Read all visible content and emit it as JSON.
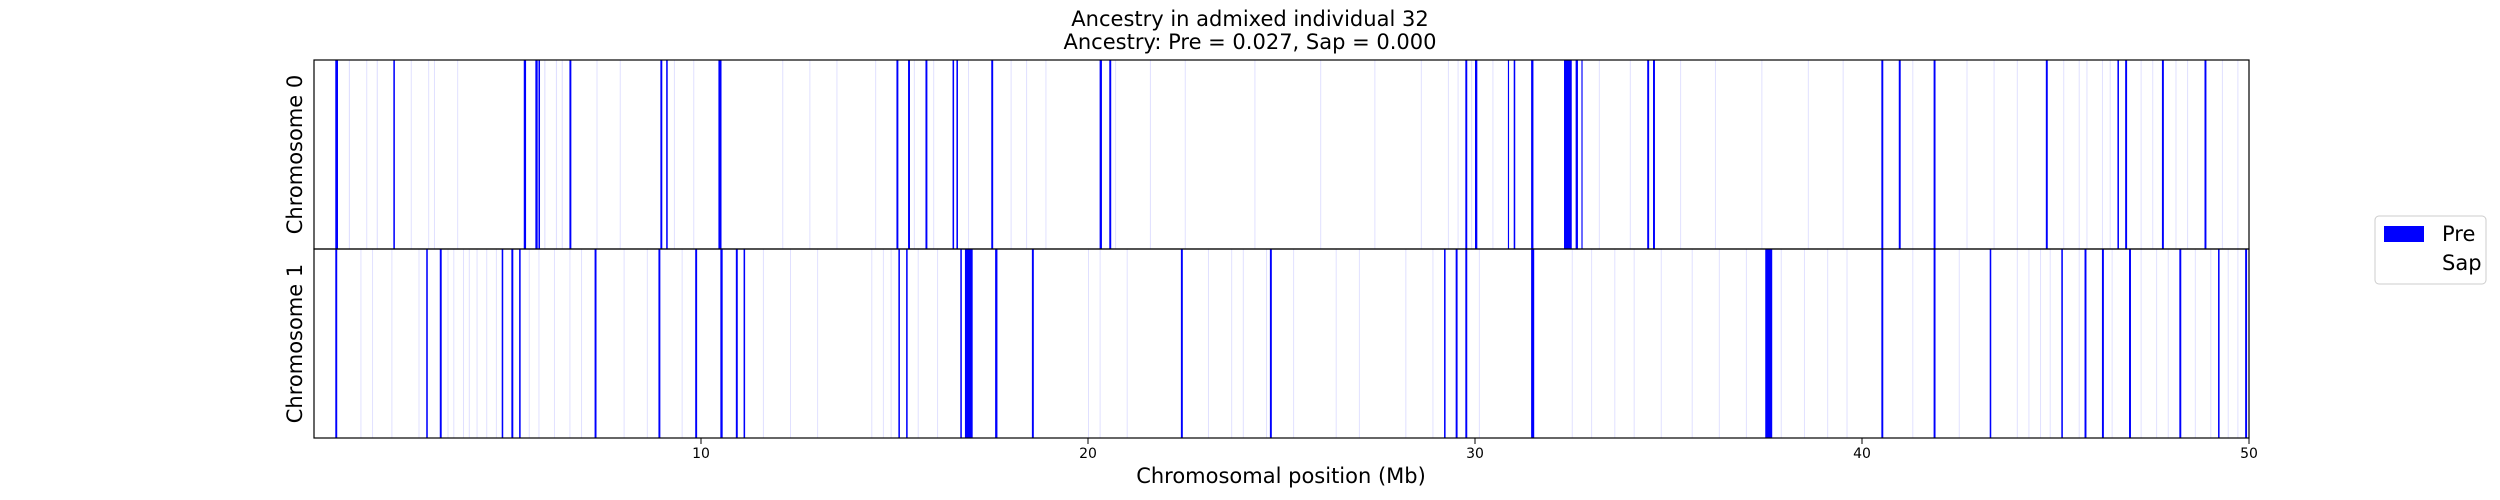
{
  "chart_data": {
    "type": "ancestry-tracks",
    "title": "Ancestry in admixed individual 32",
    "subtitle": "Ancestry: Pre = 0.027, Sap = 0.000",
    "xlabel": "Chromosomal position (Mb)",
    "xlim": [
      0,
      50
    ],
    "xticks": [
      10,
      20,
      30,
      40,
      50
    ],
    "tracks": [
      {
        "label": "Chromosome 0",
        "segments": [
          [
            0.55,
            0.62,
            1
          ],
          [
            0.9,
            0.93,
            0.12
          ],
          [
            1.35,
            1.37,
            0.12
          ],
          [
            1.62,
            1.65,
            0.12
          ],
          [
            2.05,
            2.09,
            1
          ],
          [
            2.5,
            2.52,
            0.12
          ],
          [
            2.95,
            2.97,
            0.12
          ],
          [
            3.1,
            3.12,
            0.12
          ],
          [
            3.7,
            3.72,
            0.12
          ],
          [
            5.42,
            5.48,
            1
          ],
          [
            5.72,
            5.78,
            1
          ],
          [
            5.8,
            5.84,
            1
          ],
          [
            5.95,
            5.98,
            0.12
          ],
          [
            6.25,
            6.28,
            0.12
          ],
          [
            6.4,
            6.43,
            0.12
          ],
          [
            6.6,
            6.65,
            1
          ],
          [
            7.3,
            7.32,
            0.12
          ],
          [
            7.9,
            7.92,
            0.12
          ],
          [
            8.95,
            9.0,
            1
          ],
          [
            9.1,
            9.14,
            1
          ],
          [
            9.3,
            9.32,
            0.12
          ],
          [
            9.8,
            9.82,
            0.12
          ],
          [
            10.45,
            10.53,
            1
          ],
          [
            12.1,
            12.12,
            0.12
          ],
          [
            12.8,
            12.82,
            0.12
          ],
          [
            13.5,
            13.52,
            0.12
          ],
          [
            14.5,
            14.52,
            0.12
          ],
          [
            15.05,
            15.1,
            1
          ],
          [
            15.35,
            15.4,
            1
          ],
          [
            15.5,
            15.52,
            0.12
          ],
          [
            15.8,
            15.85,
            1
          ],
          [
            16.0,
            16.02,
            0.12
          ],
          [
            16.5,
            16.54,
            1
          ],
          [
            16.6,
            16.64,
            1
          ],
          [
            16.9,
            16.92,
            0.12
          ],
          [
            17.5,
            17.55,
            1
          ],
          [
            18.0,
            18.02,
            0.12
          ],
          [
            18.4,
            18.42,
            0.12
          ],
          [
            18.9,
            18.92,
            0.12
          ],
          [
            20.3,
            20.36,
            1
          ],
          [
            20.55,
            20.6,
            1
          ],
          [
            20.7,
            20.72,
            0.12
          ],
          [
            21.6,
            21.62,
            0.12
          ],
          [
            22.5,
            22.52,
            0.12
          ],
          [
            24.3,
            24.32,
            0.12
          ],
          [
            26.0,
            26.02,
            0.12
          ],
          [
            27.4,
            27.42,
            0.12
          ],
          [
            28.6,
            28.62,
            0.12
          ],
          [
            29.3,
            29.32,
            0.12
          ],
          [
            29.55,
            29.57,
            0.12
          ],
          [
            29.75,
            29.8,
            1
          ],
          [
            29.9,
            29.92,
            0.12
          ],
          [
            30.0,
            30.06,
            1
          ],
          [
            30.45,
            30.47,
            0.12
          ],
          [
            30.85,
            30.88,
            1
          ],
          [
            31.0,
            31.04,
            1
          ],
          [
            31.45,
            31.51,
            1
          ],
          [
            32.3,
            32.5,
            1
          ],
          [
            32.6,
            32.66,
            1
          ],
          [
            32.75,
            32.78,
            1
          ],
          [
            33.2,
            33.22,
            0.12
          ],
          [
            34.0,
            34.02,
            0.12
          ],
          [
            34.45,
            34.5,
            1
          ],
          [
            34.6,
            34.65,
            1
          ],
          [
            35.3,
            35.32,
            0.12
          ],
          [
            36.2,
            36.22,
            0.12
          ],
          [
            37.4,
            37.42,
            0.12
          ],
          [
            38.6,
            38.62,
            0.12
          ],
          [
            39.5,
            39.52,
            0.12
          ],
          [
            40.5,
            40.55,
            1
          ],
          [
            40.95,
            41.0,
            1
          ],
          [
            41.3,
            41.32,
            0.12
          ],
          [
            41.85,
            41.9,
            1
          ],
          [
            42.7,
            42.72,
            0.12
          ],
          [
            43.4,
            43.42,
            0.12
          ],
          [
            44.0,
            44.02,
            0.12
          ],
          [
            44.75,
            44.8,
            1
          ],
          [
            45.2,
            45.22,
            0.12
          ],
          [
            45.6,
            45.62,
            0.12
          ],
          [
            45.8,
            45.82,
            0.12
          ],
          [
            46.2,
            46.22,
            0.12
          ],
          [
            46.4,
            46.42,
            0.12
          ],
          [
            46.6,
            46.64,
            1
          ],
          [
            46.8,
            46.85,
            1
          ],
          [
            47.2,
            47.22,
            0.12
          ],
          [
            47.5,
            47.52,
            0.12
          ],
          [
            47.75,
            47.8,
            1
          ],
          [
            48.1,
            48.12,
            0.12
          ],
          [
            48.4,
            48.42,
            0.12
          ],
          [
            48.85,
            48.9,
            1
          ],
          [
            49.3,
            49.32,
            0.12
          ],
          [
            49.7,
            49.72,
            0.12
          ]
        ]
      },
      {
        "label": "Chromosome 1",
        "segments": [
          [
            0.55,
            0.6,
            1
          ],
          [
            1.2,
            1.22,
            0.12
          ],
          [
            1.5,
            1.52,
            0.12
          ],
          [
            2.0,
            2.02,
            0.12
          ],
          [
            2.7,
            2.72,
            0.12
          ],
          [
            2.9,
            2.94,
            1
          ],
          [
            3.25,
            3.3,
            1
          ],
          [
            3.45,
            3.47,
            0.12
          ],
          [
            3.6,
            3.62,
            0.12
          ],
          [
            3.85,
            3.87,
            0.12
          ],
          [
            4.0,
            4.02,
            0.12
          ],
          [
            4.2,
            4.22,
            0.12
          ],
          [
            4.45,
            4.47,
            0.12
          ],
          [
            4.7,
            4.72,
            0.12
          ],
          [
            4.85,
            4.89,
            1
          ],
          [
            5.1,
            5.15,
            1
          ],
          [
            5.3,
            5.34,
            1
          ],
          [
            5.55,
            5.57,
            0.12
          ],
          [
            5.8,
            5.82,
            0.12
          ],
          [
            6.2,
            6.22,
            0.12
          ],
          [
            6.6,
            6.62,
            0.12
          ],
          [
            6.9,
            6.92,
            0.12
          ],
          [
            7.25,
            7.3,
            1
          ],
          [
            8.0,
            8.02,
            0.12
          ],
          [
            8.6,
            8.62,
            0.12
          ],
          [
            8.9,
            8.95,
            1
          ],
          [
            9.5,
            9.52,
            0.12
          ],
          [
            9.85,
            9.9,
            1
          ],
          [
            10.5,
            10.56,
            1
          ],
          [
            10.9,
            10.95,
            1
          ],
          [
            11.1,
            11.14,
            1
          ],
          [
            11.6,
            11.62,
            0.12
          ],
          [
            12.3,
            12.32,
            0.12
          ],
          [
            13.0,
            13.02,
            0.12
          ],
          [
            14.4,
            14.42,
            0.12
          ],
          [
            14.7,
            14.72,
            0.12
          ],
          [
            14.9,
            14.92,
            0.12
          ],
          [
            15.1,
            15.14,
            1
          ],
          [
            15.3,
            15.34,
            1
          ],
          [
            15.6,
            15.62,
            0.12
          ],
          [
            16.1,
            16.12,
            0.12
          ],
          [
            16.7,
            16.74,
            1
          ],
          [
            16.82,
            17.02,
            1
          ],
          [
            17.6,
            17.66,
            1
          ],
          [
            18.55,
            18.6,
            1
          ],
          [
            20.0,
            20.02,
            0.12
          ],
          [
            20.3,
            20.32,
            0.12
          ],
          [
            21.0,
            21.02,
            0.12
          ],
          [
            22.4,
            22.45,
            1
          ],
          [
            23.1,
            23.12,
            0.12
          ],
          [
            23.7,
            23.72,
            0.12
          ],
          [
            24.0,
            24.02,
            0.12
          ],
          [
            24.6,
            24.62,
            0.12
          ],
          [
            24.7,
            24.75,
            1
          ],
          [
            25.3,
            25.32,
            0.12
          ],
          [
            26.4,
            26.42,
            0.12
          ],
          [
            27.0,
            27.02,
            0.12
          ],
          [
            28.2,
            28.22,
            0.12
          ],
          [
            28.9,
            28.92,
            0.12
          ],
          [
            29.2,
            29.24,
            1
          ],
          [
            29.5,
            29.55,
            1
          ],
          [
            29.75,
            29.8,
            1
          ],
          [
            30.1,
            30.12,
            0.12
          ],
          [
            31.45,
            31.53,
            1
          ],
          [
            32.5,
            32.52,
            0.12
          ],
          [
            33.0,
            33.02,
            0.12
          ],
          [
            33.6,
            33.62,
            0.12
          ],
          [
            34.1,
            34.12,
            0.12
          ],
          [
            34.8,
            34.82,
            0.12
          ],
          [
            35.6,
            35.62,
            0.12
          ],
          [
            36.3,
            36.32,
            0.12
          ],
          [
            37.0,
            37.02,
            0.12
          ],
          [
            37.5,
            37.68,
            1
          ],
          [
            37.9,
            37.92,
            0.12
          ],
          [
            38.5,
            38.52,
            0.12
          ],
          [
            39.1,
            39.12,
            0.12
          ],
          [
            39.6,
            39.62,
            0.12
          ],
          [
            40.5,
            40.55,
            1
          ],
          [
            41.3,
            41.32,
            0.12
          ],
          [
            41.85,
            41.9,
            1
          ],
          [
            42.5,
            42.52,
            0.12
          ],
          [
            43.3,
            43.34,
            1
          ],
          [
            44.0,
            44.02,
            0.12
          ],
          [
            44.3,
            44.32,
            0.12
          ],
          [
            44.6,
            44.62,
            0.12
          ],
          [
            44.85,
            44.87,
            0.12
          ],
          [
            45.15,
            45.19,
            1
          ],
          [
            45.6,
            45.62,
            0.12
          ],
          [
            45.75,
            45.8,
            1
          ],
          [
            46.2,
            46.25,
            1
          ],
          [
            46.45,
            46.47,
            0.12
          ],
          [
            46.9,
            46.95,
            1
          ],
          [
            47.2,
            47.22,
            0.12
          ],
          [
            47.6,
            47.62,
            0.12
          ],
          [
            47.9,
            47.92,
            0.12
          ],
          [
            48.2,
            48.25,
            1
          ],
          [
            48.6,
            48.62,
            0.12
          ],
          [
            49.0,
            49.02,
            0.12
          ],
          [
            49.2,
            49.24,
            1
          ],
          [
            49.45,
            49.47,
            0.12
          ],
          [
            49.7,
            49.72,
            0.12
          ],
          [
            49.9,
            49.95,
            1
          ]
        ]
      }
    ],
    "legend": {
      "placement": "right",
      "entries": [
        {
          "name": "Pre",
          "color": "#0000ff"
        },
        {
          "name": "Sap",
          "color": "#ffffff"
        }
      ]
    },
    "colors": {
      "pre": "#0000ff",
      "axis": "#000000",
      "background": "#ffffff"
    }
  }
}
